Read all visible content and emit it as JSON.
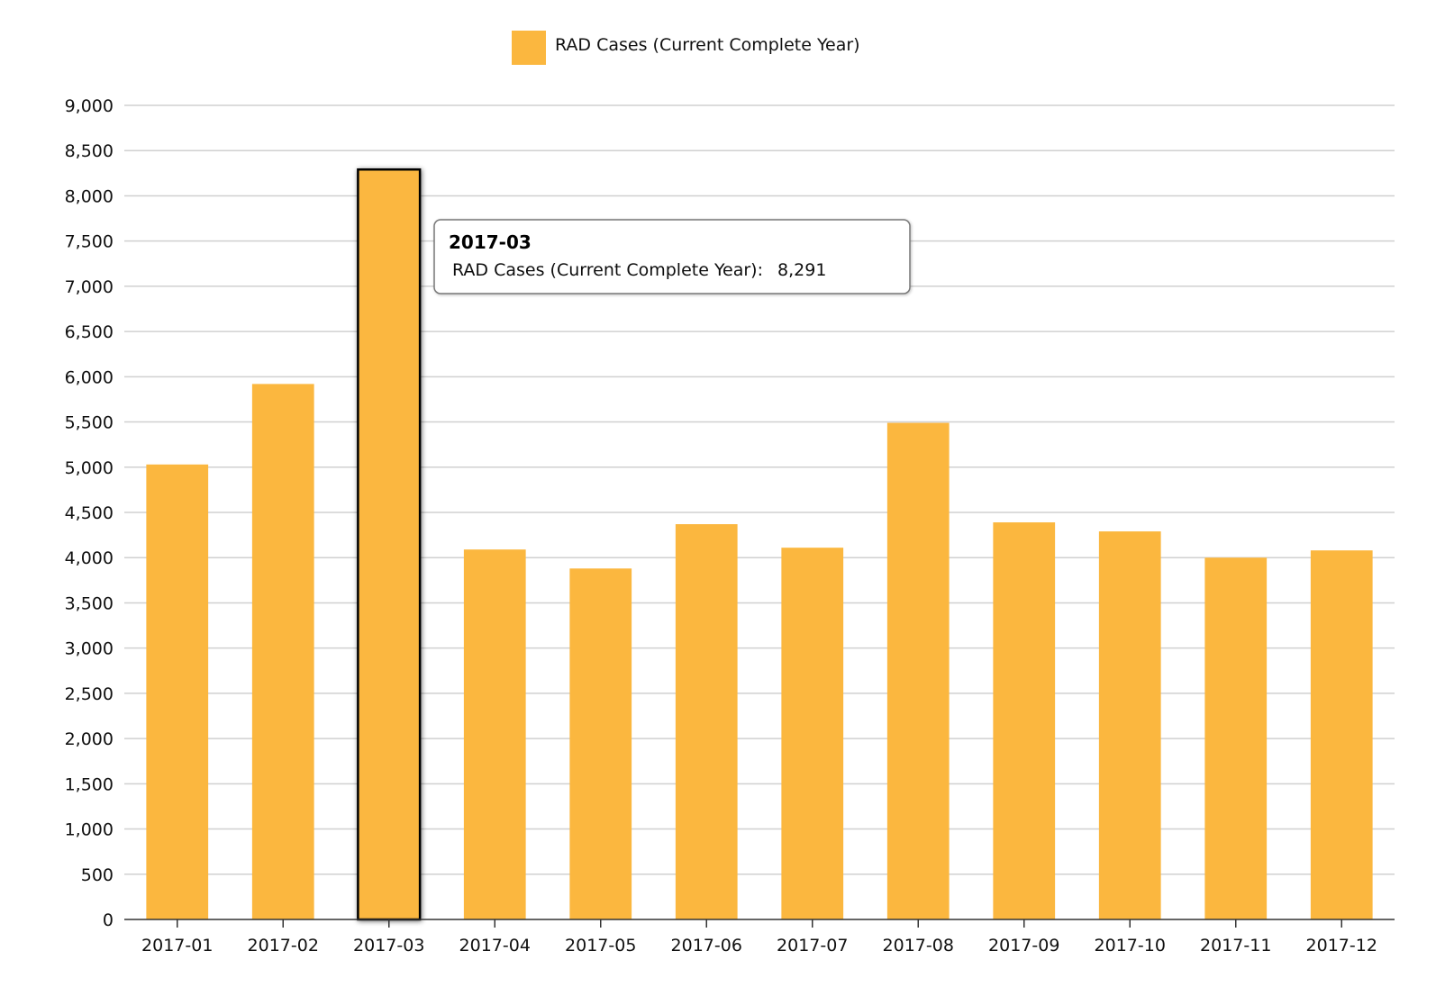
{
  "colors": {
    "bar": "#FBB73F",
    "grid": "#D0D0D0",
    "axis": "#333333",
    "highlight_stroke": "#000000"
  },
  "legend": {
    "label": "RAD Cases (Current Complete Year)",
    "placement": "top-center"
  },
  "tooltip": {
    "title": "2017-03",
    "series_label": "RAD Cases (Current Complete Year):",
    "value_label": "8,291"
  },
  "chart_data": {
    "type": "bar",
    "categories": [
      "2017-01",
      "2017-02",
      "2017-03",
      "2017-04",
      "2017-05",
      "2017-06",
      "2017-07",
      "2017-08",
      "2017-09",
      "2017-10",
      "2017-11",
      "2017-12"
    ],
    "series": [
      {
        "name": "RAD Cases (Current Complete Year)",
        "values": [
          5030,
          5920,
          8291,
          4090,
          3880,
          4370,
          4110,
          5490,
          4390,
          4290,
          4000,
          4080
        ]
      }
    ],
    "highlighted_category": "2017-03",
    "ylim": [
      0,
      9000
    ],
    "yticks": [
      0,
      500,
      1000,
      1500,
      2000,
      2500,
      3000,
      3500,
      4000,
      4500,
      5000,
      5500,
      6000,
      6500,
      7000,
      7500,
      8000,
      8500,
      9000
    ],
    "ytick_labels": [
      "0",
      "500",
      "1,000",
      "1,500",
      "2,000",
      "2,500",
      "3,000",
      "3,500",
      "4,000",
      "4,500",
      "5,000",
      "5,500",
      "6,000",
      "6,500",
      "7,000",
      "7,500",
      "8,000",
      "8,500",
      "9,000"
    ],
    "grid": true,
    "title": "",
    "xlabel": "",
    "ylabel": ""
  }
}
